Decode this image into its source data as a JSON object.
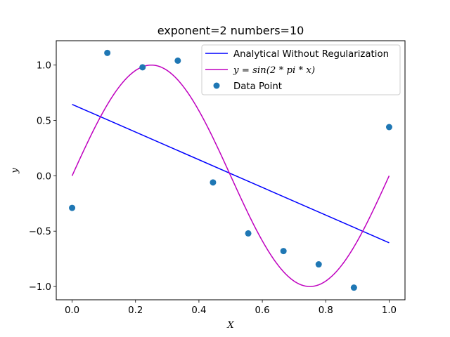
{
  "chart_data": {
    "type": "line",
    "title": "exponent=2 numbers=10",
    "xlabel": "X",
    "ylabel": "y",
    "xlim": [
      -0.05,
      1.05
    ],
    "ylim": [
      -1.12,
      1.22
    ],
    "xticks": [
      0.0,
      0.2,
      0.4,
      0.6,
      0.8,
      1.0
    ],
    "xtick_labels": [
      "0.0",
      "0.2",
      "0.4",
      "0.6",
      "0.8",
      "1.0"
    ],
    "yticks": [
      -1.0,
      -0.5,
      0.0,
      0.5,
      1.0
    ],
    "ytick_labels": [
      "−1.0",
      "−0.5",
      "0.0",
      "0.5",
      "1.0"
    ],
    "grid": false,
    "legend_position": "top-right",
    "series": [
      {
        "name": "Analytical Without Regularization",
        "kind": "line",
        "color": "#0000ff",
        "x": [
          0.0,
          1.0
        ],
        "y": [
          0.645,
          -0.605
        ]
      },
      {
        "name": "y = sin(2 * pi * x)",
        "kind": "line",
        "color": "#bf00bf",
        "function": "sin(2*pi*x)",
        "x_range": [
          0.0,
          1.0
        ]
      },
      {
        "name": "Data Point",
        "kind": "scatter",
        "color": "#1f77b4",
        "x": [
          0.0,
          0.1111,
          0.2222,
          0.3333,
          0.4444,
          0.5556,
          0.6667,
          0.7778,
          0.8889,
          1.0
        ],
        "y": [
          -0.29,
          1.11,
          0.98,
          1.04,
          -0.06,
          -0.52,
          -0.68,
          -0.8,
          -1.01,
          0.44
        ]
      }
    ],
    "legend": {
      "entries": [
        {
          "label": "Analytical Without Regularization"
        },
        {
          "label": "y = sin(2 * pi * x)"
        },
        {
          "label": "Data Point"
        }
      ]
    }
  }
}
